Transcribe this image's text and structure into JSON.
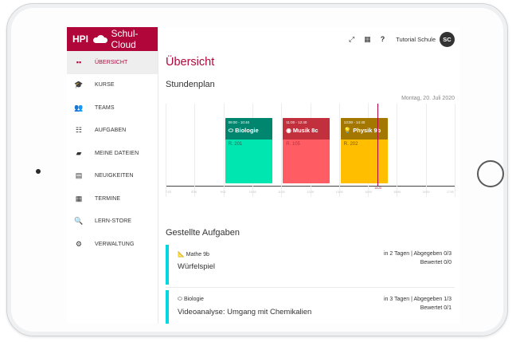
{
  "brand": {
    "hpi": "HPI",
    "name": "Schul-Cloud"
  },
  "sidebar": {
    "items": [
      {
        "label": "ÜBERSICHT",
        "icon": "dashboard-icon",
        "glyph": "▪▪",
        "active": true
      },
      {
        "label": "KURSE",
        "icon": "graduation-cap-icon",
        "glyph": "🎓"
      },
      {
        "label": "TEAMS",
        "icon": "users-icon",
        "glyph": "👥"
      },
      {
        "label": "AUFGABEN",
        "icon": "tasks-icon",
        "glyph": "☷"
      },
      {
        "label": "MEINE DATEIEN",
        "icon": "folder-icon",
        "glyph": "▰"
      },
      {
        "label": "NEUIGKEITEN",
        "icon": "newspaper-icon",
        "glyph": "▤"
      },
      {
        "label": "TERMINE",
        "icon": "calendar-icon",
        "glyph": "▦"
      },
      {
        "label": "LERN-STORE",
        "icon": "search-icon",
        "glyph": "🔍"
      },
      {
        "label": "VERWALTUNG",
        "icon": "cogs-icon",
        "glyph": "⚙"
      }
    ]
  },
  "topbar": {
    "fullscreen_glyph": "⤢",
    "qr_glyph": "▦",
    "help_glyph": "?",
    "school": "Tutorial Schule",
    "avatar": "SC"
  },
  "main": {
    "title": "Übersicht",
    "schedule_title": "Stundenplan",
    "date": "Montag, 20. Juli 2020",
    "tasks_title": "Gestellte Aufgaben"
  },
  "timetable": {
    "hours": [
      "7:00",
      "8:00",
      "9:00",
      "10:00",
      "11:00",
      "12:00",
      "13:00",
      "14:00",
      "15:00",
      "16:00",
      "17:00"
    ],
    "now": "14:20",
    "lessons": [
      {
        "time": "09:00 - 10:40",
        "subject": "Biologie",
        "glyph": "⬭",
        "room": "R. 201",
        "header_color": "#00866f",
        "body_color": "#00e6b0",
        "room_color": "#1a6b5a"
      },
      {
        "time": "11:00 - 12:40",
        "subject": "Musik 8c",
        "glyph": "◉",
        "room": "R. 105",
        "header_color": "#c1303c",
        "body_color": "#ff5c63",
        "room_color": "#c1303c"
      },
      {
        "time": "13:00 - 14:40",
        "subject": "Physik 9b",
        "glyph": "💡",
        "room": "R. 202",
        "header_color": "#a47800",
        "body_color": "#ffbf00",
        "room_color": "#7a5a00"
      }
    ]
  },
  "tasks": [
    {
      "course": "Mathe 9b",
      "course_glyph": "📐",
      "name": "Würfelspiel",
      "due": "in 2 Tagen | Abgegeben 0/3",
      "grade": "Bewertet 0/0"
    },
    {
      "course": "Biologie",
      "course_glyph": "⬭",
      "name": "Videoanalyse: Umgang mit Chemikalien",
      "due": "in 3 Tagen | Abgegeben 1/3",
      "grade": "Bewertet 0/1"
    }
  ],
  "colors": {
    "brand": "#b1063a",
    "task_accent": "#00d7e0"
  }
}
